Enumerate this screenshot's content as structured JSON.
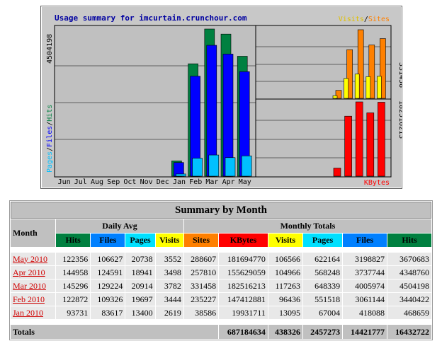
{
  "chart_data": [
    {
      "type": "bar",
      "title": "Usage summary for imcurtain.crunchour.com",
      "ylabel": "Pages / Files / Hits",
      "y_max_label": "4504198",
      "ylim": [
        0,
        4504198
      ],
      "categories": [
        "Jun",
        "Jul",
        "Aug",
        "Sep",
        "Oct",
        "Nov",
        "Dec",
        "Jan",
        "Feb",
        "Mar",
        "Apr",
        "May"
      ],
      "series": [
        {
          "name": "Hits",
          "color": "#008040",
          "values": [
            0,
            0,
            0,
            0,
            0,
            0,
            0,
            468659,
            3440422,
            4504198,
            4348760,
            3670683
          ]
        },
        {
          "name": "Files",
          "color": "#0000ff",
          "values": [
            0,
            0,
            0,
            0,
            0,
            0,
            0,
            418088,
            3061144,
            4005974,
            3737744,
            3198827
          ]
        },
        {
          "name": "Pages",
          "color": "#00c0ff",
          "values": [
            0,
            0,
            0,
            0,
            0,
            0,
            0,
            67004,
            551518,
            648339,
            568248,
            622164
          ]
        }
      ]
    },
    {
      "type": "bar",
      "legend": [
        "Visits",
        "Sites"
      ],
      "y_max_label": "331458",
      "ylim": [
        0,
        331458
      ],
      "categories": [
        "Jan",
        "Feb",
        "Mar",
        "Apr",
        "May"
      ],
      "series": [
        {
          "name": "Visits",
          "color": "#ffff00",
          "values": [
            13095,
            96436,
            117263,
            104966,
            106566
          ]
        },
        {
          "name": "Sites",
          "color": "#ff8000",
          "values": [
            38586,
            235227,
            331458,
            257810,
            288607
          ]
        }
      ]
    },
    {
      "type": "bar",
      "legend": [
        "KBytes"
      ],
      "y_max_label": "182516213",
      "ylim": [
        0,
        182516213
      ],
      "categories": [
        "Jan",
        "Feb",
        "Mar",
        "Apr",
        "May"
      ],
      "series": [
        {
          "name": "KBytes",
          "color": "#ff0000",
          "values": [
            19931711,
            147412881,
            182516213,
            155629059,
            181694770
          ]
        }
      ]
    }
  ],
  "legend_labels": {
    "visits": "Visits",
    "slash": "/",
    "sites": "Sites",
    "kbytes": "KBytes",
    "pages": "Pages",
    "files": "Files",
    "hits": "Hits"
  },
  "colors": {
    "hits": "#008040",
    "files": "#0000ff",
    "pages": "#00c0ff",
    "visits": "#ffff00",
    "sites": "#ff8000",
    "kbytes": "#ff0000"
  },
  "summary": {
    "title": "Summary by Month",
    "month_header": "Month",
    "daily_avg_header": "Daily Avg",
    "monthly_totals_header": "Monthly Totals",
    "daily_cols": [
      "Hits",
      "Files",
      "Pages",
      "Visits"
    ],
    "monthly_cols": [
      "Sites",
      "KBytes",
      "Visits",
      "Pages",
      "Files",
      "Hits"
    ],
    "rows": [
      {
        "month": "May 2010",
        "d_hits": "122356",
        "d_files": "106627",
        "d_pages": "20738",
        "d_visits": "3552",
        "sites": "288607",
        "kbytes": "181694770",
        "visits": "106566",
        "pages": "622164",
        "files": "3198827",
        "hits": "3670683"
      },
      {
        "month": "Apr 2010",
        "d_hits": "144958",
        "d_files": "124591",
        "d_pages": "18941",
        "d_visits": "3498",
        "sites": "257810",
        "kbytes": "155629059",
        "visits": "104966",
        "pages": "568248",
        "files": "3737744",
        "hits": "4348760"
      },
      {
        "month": "Mar 2010",
        "d_hits": "145296",
        "d_files": "129224",
        "d_pages": "20914",
        "d_visits": "3782",
        "sites": "331458",
        "kbytes": "182516213",
        "visits": "117263",
        "pages": "648339",
        "files": "4005974",
        "hits": "4504198"
      },
      {
        "month": "Feb 2010",
        "d_hits": "122872",
        "d_files": "109326",
        "d_pages": "19697",
        "d_visits": "3444",
        "sites": "235227",
        "kbytes": "147412881",
        "visits": "96436",
        "pages": "551518",
        "files": "3061144",
        "hits": "3440422"
      },
      {
        "month": "Jan 2010",
        "d_hits": "93731",
        "d_files": "83617",
        "d_pages": "13400",
        "d_visits": "2619",
        "sites": "38586",
        "kbytes": "19931711",
        "visits": "13095",
        "pages": "67004",
        "files": "418088",
        "hits": "468659"
      }
    ],
    "totals_label": "Totals",
    "totals": {
      "kbytes": "687184634",
      "visits": "438326",
      "pages": "2457273",
      "files": "14421777",
      "hits": "16432722"
    }
  }
}
